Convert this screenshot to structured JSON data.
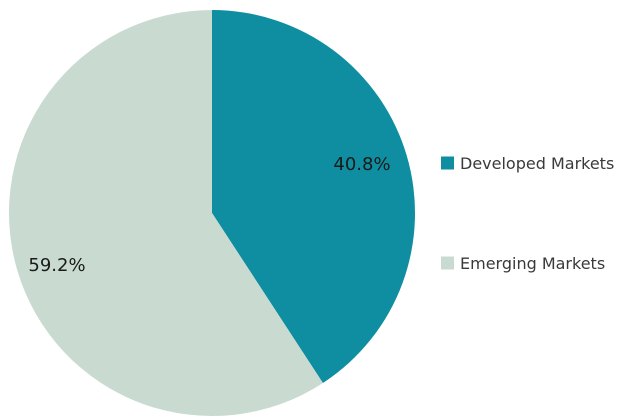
{
  "chart_data": {
    "type": "pie",
    "slices": [
      {
        "label": "Developed Markets",
        "value": 40.8,
        "display": "40.8%",
        "color": "#0e8ea0"
      },
      {
        "label": "Emerging Markets",
        "value": 59.2,
        "display": "59.2%",
        "color": "#c9dbd1"
      }
    ],
    "start_angle": "12 o'clock",
    "direction": "clockwise",
    "legend": {
      "position": "right",
      "items": [
        "Developed Markets",
        "Emerging Markets"
      ]
    }
  }
}
